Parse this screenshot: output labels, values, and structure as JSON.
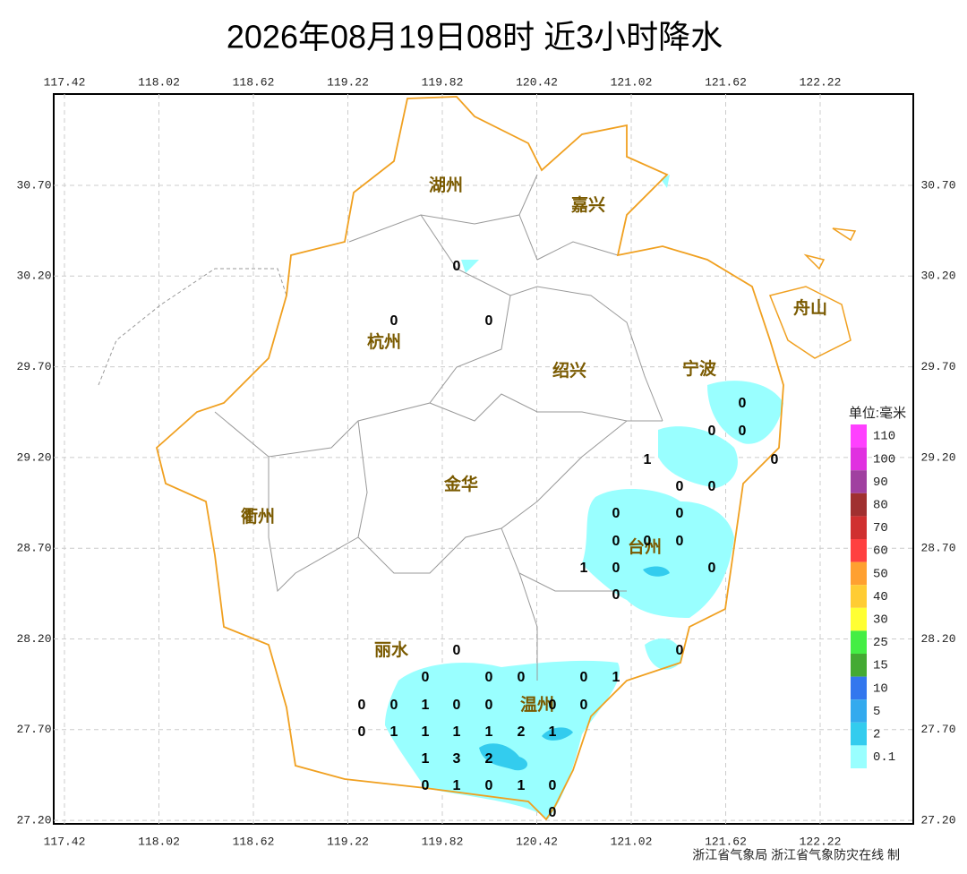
{
  "title": "2026年08月19日08时  近3小时降水",
  "lon_ticks": [
    "117.42",
    "118.02",
    "118.62",
    "119.22",
    "119.82",
    "120.42",
    "121.02",
    "121.62",
    "122.22"
  ],
  "lat_ticks": [
    "30.70",
    "30.20",
    "29.70",
    "29.20",
    "28.70",
    "28.20",
    "27.70",
    "27.20"
  ],
  "cities": [
    "湖州",
    "嘉兴",
    "杭州",
    "绍兴",
    "宁波",
    "舟山",
    "金华",
    "衢州",
    "台州",
    "丽水",
    "温州"
  ],
  "stations": [
    0,
    0,
    0,
    0,
    0,
    0,
    1,
    0,
    0,
    0,
    0,
    0,
    0,
    0,
    0,
    1,
    0,
    0,
    0,
    0,
    0,
    0,
    0,
    0,
    0,
    1,
    0,
    0,
    1,
    0,
    0,
    0,
    0,
    0,
    1,
    1,
    1,
    1,
    2,
    1,
    1,
    3,
    2,
    0,
    1,
    0,
    1,
    0,
    0
  ],
  "legend": {
    "title": "单位:毫米",
    "items": [
      {
        "label": "110",
        "color": "#ff40ff"
      },
      {
        "label": "100",
        "color": "#e030e0"
      },
      {
        "label": "90",
        "color": "#a040a0"
      },
      {
        "label": "80",
        "color": "#a03030"
      },
      {
        "label": "70",
        "color": "#d03030"
      },
      {
        "label": "60",
        "color": "#ff4040"
      },
      {
        "label": "50",
        "color": "#ffa030"
      },
      {
        "label": "40",
        "color": "#ffcc33"
      },
      {
        "label": "30",
        "color": "#ffff33"
      },
      {
        "label": "25",
        "color": "#44ee44"
      },
      {
        "label": "15",
        "color": "#44aa33"
      },
      {
        "label": "10",
        "color": "#3377ee"
      },
      {
        "label": "5",
        "color": "#33aaee"
      },
      {
        "label": "2",
        "color": "#33ccee"
      },
      {
        "label": "0.1",
        "color": "#99ffff"
      }
    ]
  },
  "footer": "浙江省气象局 浙江省气象防灾在线 制"
}
